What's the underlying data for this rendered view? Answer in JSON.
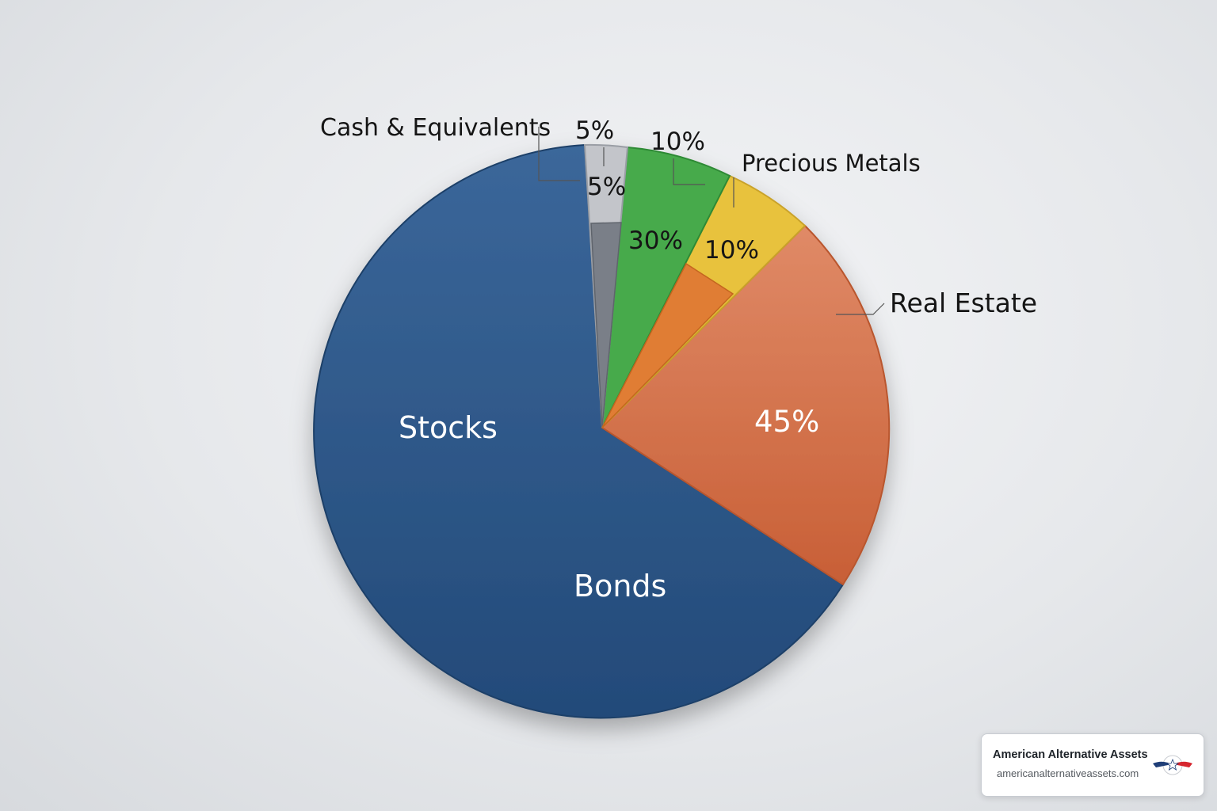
{
  "chart_data": {
    "type": "pie",
    "slices": [
      {
        "label": "Cash & Equivalents",
        "value_label": "5%",
        "color": "#c3c5ca"
      },
      {
        "label": "",
        "value_label": "30%",
        "color": "#47aa4c"
      },
      {
        "label": "Precious Metals",
        "value_label": "10%",
        "color": "#e8c23e"
      },
      {
        "label": "Real Estate",
        "value_label": "45%",
        "color": "#d97650"
      },
      {
        "label": "Stocks",
        "value_label": "",
        "color": "#2c5788"
      },
      {
        "label": "Bonds",
        "value_label": "",
        "color": "#2c5788"
      }
    ],
    "extra_labels": [
      "5%",
      "10%"
    ],
    "colors": {
      "stocks_bonds": "#2c5788",
      "cash": "#c3c5ca",
      "cash_inner": "#7a7f88",
      "green": "#47aa4c",
      "gold": "#e8c23e",
      "orange_inner": "#e07d34",
      "real_estate": "#d97650"
    }
  },
  "badge": {
    "name": "American Alternative Assets",
    "url": "americanalternativeassets.com",
    "logo_icon": "winged-star-logo"
  }
}
